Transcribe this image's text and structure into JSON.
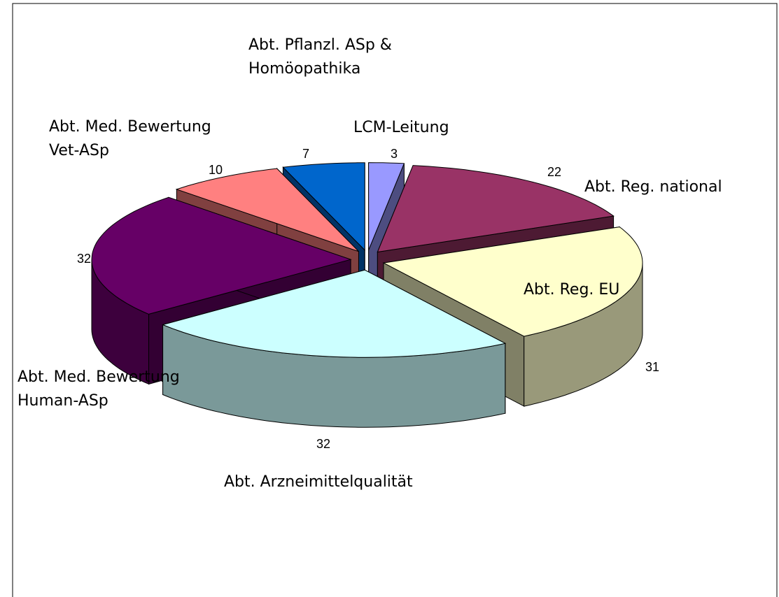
{
  "chart_data": {
    "type": "pie3d",
    "categories": [
      "LCM-Leitung",
      "Abt. Reg. national",
      "Abt. Reg. EU",
      "Abt. Arzneimittelqualität",
      "Abt. Med. Bewertung\nHuman-ASp",
      "Abt. Med. Bewertung\nVet-ASp",
      "Abt. Pflanzl. ASp &\nHomöopathika"
    ],
    "values": [
      3,
      22,
      31,
      32,
      32,
      10,
      7
    ],
    "colors": [
      "#9999ff",
      "#993366",
      "#ffffcc",
      "#ccffff",
      "#660066",
      "#ff8080",
      "#0066cc"
    ]
  }
}
